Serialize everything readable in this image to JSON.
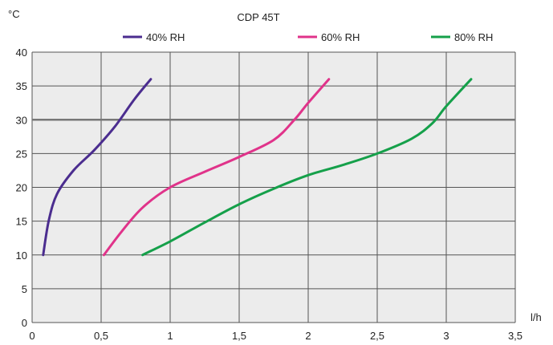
{
  "chart_data": {
    "type": "line",
    "title": "CDP 45T",
    "ylabel": "°C",
    "xlabel": "l/h",
    "xlim": [
      0,
      3.5
    ],
    "ylim": [
      0,
      40
    ],
    "x_ticks": [
      0,
      0.5,
      1,
      1.5,
      2,
      2.5,
      3,
      3.5
    ],
    "x_tick_labels": [
      "0",
      "0,5",
      "1",
      "1,5",
      "2",
      "2,5",
      "3",
      "3,5"
    ],
    "y_ticks": [
      0,
      5,
      10,
      15,
      20,
      25,
      30,
      35,
      40
    ],
    "y_tick_labels": [
      "0",
      "5",
      "10",
      "15",
      "20",
      "25",
      "30",
      "35",
      "40"
    ],
    "grid": true,
    "highlight_line_y": 30,
    "legend_position": "top",
    "series": [
      {
        "name": "40% RH",
        "color": "#4b2d8f",
        "points": [
          [
            0.08,
            10
          ],
          [
            0.12,
            15
          ],
          [
            0.18,
            19
          ],
          [
            0.3,
            22.5
          ],
          [
            0.45,
            25.5
          ],
          [
            0.6,
            29
          ],
          [
            0.74,
            33
          ],
          [
            0.86,
            36
          ]
        ]
      },
      {
        "name": "60% RH",
        "color": "#e0338a",
        "points": [
          [
            0.52,
            10
          ],
          [
            0.65,
            13.5
          ],
          [
            0.8,
            17
          ],
          [
            1.0,
            20
          ],
          [
            1.25,
            22.3
          ],
          [
            1.5,
            24.5
          ],
          [
            1.75,
            27
          ],
          [
            1.9,
            30
          ],
          [
            2.0,
            32.5
          ],
          [
            2.15,
            36
          ]
        ]
      },
      {
        "name": "80% RH",
        "color": "#15a04a",
        "points": [
          [
            0.8,
            10
          ],
          [
            1.0,
            12
          ],
          [
            1.25,
            14.8
          ],
          [
            1.5,
            17.5
          ],
          [
            1.75,
            19.8
          ],
          [
            2.0,
            21.8
          ],
          [
            2.25,
            23.3
          ],
          [
            2.5,
            25
          ],
          [
            2.75,
            27.2
          ],
          [
            2.9,
            29.5
          ],
          [
            3.0,
            32
          ],
          [
            3.18,
            36
          ]
        ]
      }
    ]
  }
}
